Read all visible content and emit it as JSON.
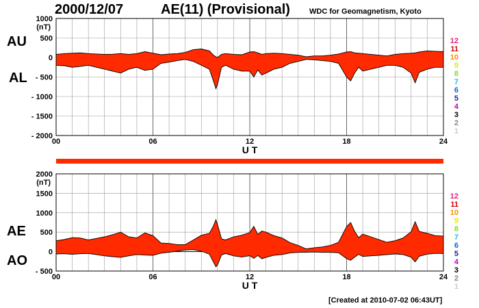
{
  "header": {
    "date": "2000/12/07",
    "title": "AE(11) (Provisional)",
    "source": "WDC for Geomagnetism, Kyoto"
  },
  "labels": {
    "au": "AU",
    "al": "AL",
    "ae": "AE",
    "ao": "AO"
  },
  "footer": "[Created at 2010-07-02 06:43UT]",
  "colors": {
    "fill": "#ff2a00",
    "line": "#000000",
    "grid": "#999999"
  },
  "station_count_legend": [
    {
      "label": "12",
      "color": "#e0207f"
    },
    {
      "label": "11",
      "color": "#d00000"
    },
    {
      "label": "10",
      "color": "#ff8c00"
    },
    {
      "label": "9",
      "color": "#e8e800"
    },
    {
      "label": "8",
      "color": "#80e020"
    },
    {
      "label": "7",
      "color": "#20c0e0"
    },
    {
      "label": "6",
      "color": "#1060e0"
    },
    {
      "label": "5",
      "color": "#2020a0"
    },
    {
      "label": "4",
      "color": "#c000c0"
    },
    {
      "label": "3",
      "color": "#000000"
    },
    {
      "label": "2",
      "color": "#888888"
    },
    {
      "label": "1",
      "color": "#cccccc"
    }
  ],
  "chart_data": [
    {
      "type": "area",
      "panel": "AU/AL",
      "ylabel": "(nT)",
      "xlabel": "U T",
      "xlim": [
        0,
        24
      ],
      "ylim": [
        -2000,
        1000
      ],
      "x_ticks": [
        "00",
        "06",
        "12",
        "18",
        "24"
      ],
      "y_ticks": [
        "1000",
        "500",
        "0",
        "- 500",
        "- 1000",
        "- 1500",
        "- 2000"
      ],
      "y_tick_values": [
        1000,
        500,
        0,
        -500,
        -1000,
        -1500,
        -2000
      ],
      "grid": true,
      "x_hours": [
        0,
        0.5,
        1,
        1.5,
        2,
        2.5,
        3,
        3.5,
        4,
        4.5,
        5,
        5.5,
        6,
        6.5,
        7,
        7.5,
        8,
        8.5,
        9,
        9.5,
        9.75,
        9.9,
        10,
        10.25,
        10.5,
        11,
        11.5,
        12,
        12.25,
        12.5,
        12.75,
        13,
        13.5,
        14,
        14.5,
        15,
        15.5,
        16,
        16.5,
        17,
        17.5,
        18,
        18.25,
        18.5,
        18.75,
        19,
        19.5,
        20,
        20.5,
        21,
        21.5,
        22,
        22.25,
        22.5,
        23,
        23.5,
        24
      ],
      "series": [
        {
          "name": "AU",
          "values": [
            80,
            100,
            110,
            120,
            100,
            90,
            80,
            85,
            100,
            80,
            100,
            150,
            110,
            70,
            90,
            100,
            130,
            200,
            220,
            170,
            60,
            20,
            0,
            80,
            100,
            80,
            70,
            140,
            150,
            120,
            80,
            100,
            110,
            100,
            80,
            60,
            20,
            40,
            40,
            60,
            90,
            140,
            150,
            120,
            110,
            100,
            80,
            60,
            40,
            80,
            100,
            110,
            120,
            140,
            170,
            160,
            150
          ]
        },
        {
          "name": "AL",
          "values": [
            -200,
            -210,
            -250,
            -230,
            -200,
            -250,
            -300,
            -350,
            -400,
            -300,
            -250,
            -330,
            -300,
            -150,
            -120,
            -80,
            -50,
            -100,
            -200,
            -300,
            -600,
            -800,
            -700,
            -250,
            -200,
            -300,
            -350,
            -350,
            -500,
            -320,
            -450,
            -400,
            -300,
            -250,
            -150,
            -100,
            -50,
            -60,
            -80,
            -100,
            -150,
            -500,
            -600,
            -400,
            -250,
            -350,
            -300,
            -250,
            -200,
            -200,
            -250,
            -400,
            -650,
            -380,
            -300,
            -250,
            -250
          ]
        }
      ]
    },
    {
      "type": "area",
      "panel": "AE/AO",
      "ylabel": "(nT)",
      "xlabel": "U T",
      "xlim": [
        0,
        24
      ],
      "ylim": [
        -500,
        2000
      ],
      "x_ticks": [
        "00",
        "06",
        "12",
        "18",
        "24"
      ],
      "y_ticks": [
        "2000",
        "1500",
        "1000",
        "500",
        "0",
        "- 500"
      ],
      "y_tick_values": [
        2000,
        1500,
        1000,
        500,
        0,
        -500
      ],
      "grid": true,
      "x_hours": [
        0,
        0.5,
        1,
        1.5,
        2,
        2.5,
        3,
        3.5,
        4,
        4.5,
        5,
        5.5,
        6,
        6.5,
        7,
        7.5,
        8,
        8.5,
        9,
        9.5,
        9.75,
        9.9,
        10,
        10.25,
        10.5,
        11,
        11.5,
        12,
        12.25,
        12.5,
        12.75,
        13,
        13.5,
        14,
        14.5,
        15,
        15.5,
        16,
        16.5,
        17,
        17.5,
        18,
        18.25,
        18.5,
        18.75,
        19,
        19.5,
        20,
        20.5,
        21,
        21.5,
        22,
        22.25,
        22.5,
        23,
        23.5,
        24
      ],
      "series": [
        {
          "name": "AE",
          "values": [
            280,
            310,
            360,
            350,
            300,
            340,
            380,
            435,
            500,
            380,
            350,
            480,
            410,
            220,
            210,
            180,
            180,
            300,
            420,
            470,
            660,
            820,
            700,
            330,
            300,
            380,
            420,
            490,
            650,
            440,
            530,
            500,
            410,
            350,
            230,
            160,
            70,
            100,
            120,
            160,
            240,
            640,
            750,
            520,
            360,
            450,
            380,
            310,
            240,
            280,
            350,
            510,
            770,
            520,
            470,
            410,
            400
          ]
        },
        {
          "name": "AO",
          "values": [
            -60,
            -55,
            -70,
            -55,
            -50,
            -80,
            -110,
            -130,
            -150,
            -110,
            -75,
            -90,
            -95,
            -40,
            -15,
            10,
            40,
            50,
            10,
            -65,
            -270,
            -390,
            -350,
            -85,
            -50,
            -110,
            -140,
            -105,
            -175,
            -100,
            -185,
            -150,
            -95,
            -75,
            -35,
            -20,
            -15,
            -10,
            -20,
            -20,
            -30,
            -180,
            -225,
            -140,
            -70,
            -125,
            -110,
            -95,
            -80,
            -60,
            -75,
            -145,
            -265,
            -120,
            -65,
            -45,
            -50
          ]
        }
      ]
    }
  ]
}
